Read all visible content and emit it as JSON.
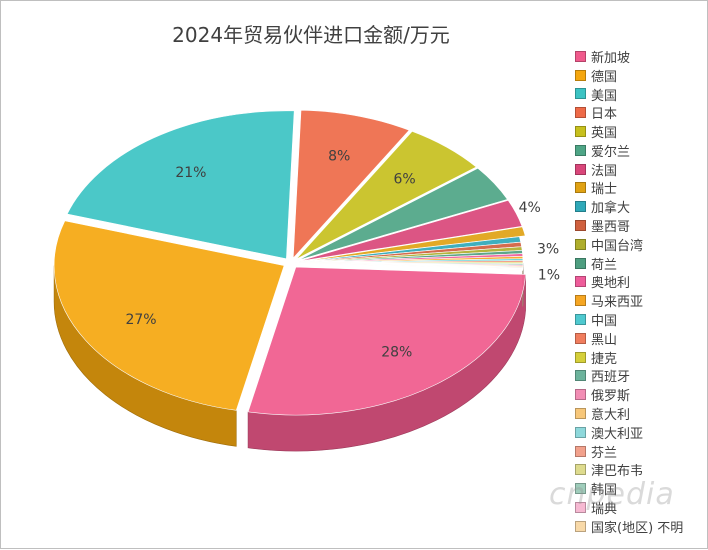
{
  "chart_data": {
    "type": "pie",
    "title": "2024年贸易伙伴进口金额/万元",
    "legend_position": "right",
    "slices": [
      {
        "name": "新加坡",
        "value": 28,
        "label": "28%",
        "color": "#F05A8C"
      },
      {
        "name": "德国",
        "value": 27,
        "label": "27%",
        "color": "#F5A70F"
      },
      {
        "name": "美国",
        "value": 21,
        "label": "21%",
        "color": "#3CC3C3"
      },
      {
        "name": "日本",
        "value": 8,
        "label": "8%",
        "color": "#EE6A48"
      },
      {
        "name": "英国",
        "value": 6,
        "label": "6%",
        "color": "#C7C01E"
      },
      {
        "name": "爱尔兰",
        "value": 4,
        "label": "4%",
        "color": "#4EA586"
      },
      {
        "name": "法国",
        "value": 3,
        "label": "3%",
        "color": "#D9467A"
      },
      {
        "name": "瑞士",
        "value": 1,
        "label": "1%",
        "color": "#E0A214"
      },
      {
        "name": "加拿大",
        "value": 0.6,
        "label": "",
        "color": "#2FA8B8"
      },
      {
        "name": "墨西哥",
        "value": 0.5,
        "label": "",
        "color": "#D0603E"
      },
      {
        "name": "中国台湾",
        "value": 0.4,
        "label": "",
        "color": "#AFAE2C"
      },
      {
        "name": "荷兰",
        "value": 0.35,
        "label": "",
        "color": "#4E9E80"
      },
      {
        "name": "奥地利",
        "value": 0.3,
        "label": "",
        "color": "#EE5C9A"
      },
      {
        "name": "马来西亚",
        "value": 0.25,
        "label": "",
        "color": "#F5A623"
      },
      {
        "name": "中国",
        "value": 0.2,
        "label": "",
        "color": "#4FC9CF"
      },
      {
        "name": "黑山",
        "value": 0.18,
        "label": "",
        "color": "#F07D5E"
      },
      {
        "name": "捷克",
        "value": 0.15,
        "label": "",
        "color": "#D5CF3A"
      },
      {
        "name": "西班牙",
        "value": 0.13,
        "label": "",
        "color": "#6CB39C"
      },
      {
        "name": "俄罗斯",
        "value": 0.12,
        "label": "",
        "color": "#F28DB4"
      },
      {
        "name": "意大利",
        "value": 0.1,
        "label": "",
        "color": "#F7C77A"
      },
      {
        "name": "澳大利亚",
        "value": 0.09,
        "label": "",
        "color": "#8ED8DB"
      },
      {
        "name": "芬兰",
        "value": 0.08,
        "label": "",
        "color": "#F2A18C"
      },
      {
        "name": "津巴布韦",
        "value": 0.07,
        "label": "",
        "color": "#DEDB8E"
      },
      {
        "name": "韩国",
        "value": 0.06,
        "label": "",
        "color": "#9FCDBB"
      },
      {
        "name": "瑞典",
        "value": 0.05,
        "label": "",
        "color": "#F6B9D2"
      },
      {
        "name": "国家(地区) 不明",
        "value": 0.05,
        "label": "",
        "color": "#F8D9A8"
      }
    ]
  },
  "watermark": "cnpedia"
}
